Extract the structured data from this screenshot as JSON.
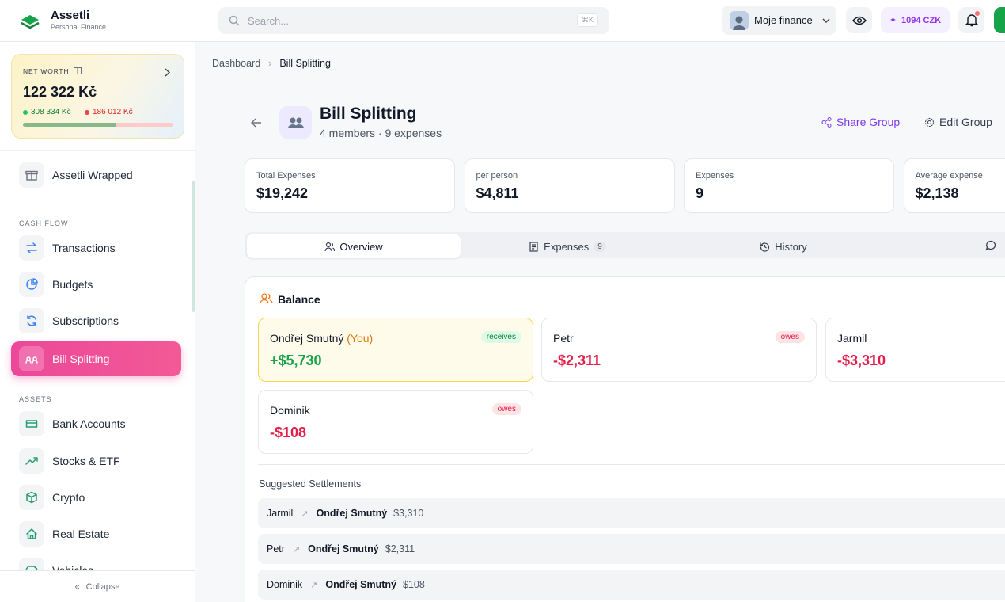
{
  "app": {
    "name": "Assetli",
    "tagline": "Personal Finance"
  },
  "search": {
    "placeholder": "Search...",
    "shortcut": "⌘K"
  },
  "topbar": {
    "profile": "Moje finance",
    "credits": "1094 CZK"
  },
  "net_worth": {
    "label": "NET WORTH",
    "value": "122 322 Kč",
    "assets": "308 334 Kč",
    "liabilities": "186 012 Kč"
  },
  "sidebar": {
    "wrapped": "Assetli Wrapped",
    "sections": [
      {
        "title": "CASH FLOW",
        "items": [
          "Transactions",
          "Budgets",
          "Subscriptions",
          "Bill Splitting"
        ]
      },
      {
        "title": "ASSETS",
        "items": [
          "Bank Accounts",
          "Stocks & ETF",
          "Crypto",
          "Real Estate",
          "Vehicles"
        ]
      }
    ],
    "collapse": "Collapse"
  },
  "breadcrumb": [
    "Dashboard",
    "Bill Splitting"
  ],
  "group": {
    "title": "Bill Splitting",
    "subtitle": "4 members · 9 expenses",
    "actions": [
      "Share Group",
      "Edit Group"
    ]
  },
  "stats": [
    {
      "label": "Total Expenses",
      "value": "$19,242"
    },
    {
      "label": "per person",
      "value": "$4,811"
    },
    {
      "label": "Expenses",
      "value": "9"
    },
    {
      "label": "Average expense",
      "value": "$2,138"
    }
  ],
  "tabs": [
    {
      "label": "Overview"
    },
    {
      "label": "Expenses",
      "count": 9
    },
    {
      "label": "History"
    }
  ],
  "balance": {
    "title": "Balance",
    "members": [
      {
        "name": "Ondřej Smutný",
        "you": "(You)",
        "status": "receives",
        "amount": "+$5,730"
      },
      {
        "name": "Petr",
        "status": "owes",
        "amount": "-$2,311"
      },
      {
        "name": "Jarmil",
        "status": "owes",
        "amount": "-$3,310"
      },
      {
        "name": "Dominik",
        "status": "owes",
        "amount": "-$108"
      }
    ]
  },
  "settlements": {
    "title": "Suggested Settlements",
    "items": [
      {
        "from": "Jarmil",
        "to": "Ondřej Smutný",
        "amount": "$3,310"
      },
      {
        "from": "Petr",
        "to": "Ondřej Smutný",
        "amount": "$2,311"
      },
      {
        "from": "Dominik",
        "to": "Ondřej Smutný",
        "amount": "$108"
      }
    ]
  }
}
